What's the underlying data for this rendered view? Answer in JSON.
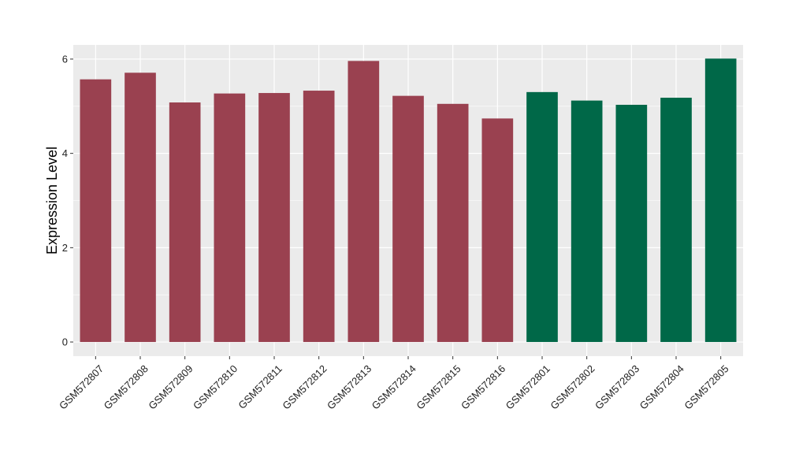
{
  "chart_data": {
    "type": "bar",
    "title": "",
    "xlabel": "",
    "ylabel": "Expression Level",
    "ylim": [
      -0.3,
      6.3
    ],
    "yticks": [
      0,
      2,
      4,
      6
    ],
    "grid": true,
    "legend": "none",
    "categories": [
      "GSM572807",
      "GSM572808",
      "GSM572809",
      "GSM572810",
      "GSM572811",
      "GSM572812",
      "GSM572813",
      "GSM572814",
      "GSM572815",
      "GSM572816",
      "GSM572801",
      "GSM572802",
      "GSM572803",
      "GSM572804",
      "GSM572805"
    ],
    "values": [
      5.57,
      5.71,
      5.08,
      5.27,
      5.28,
      5.33,
      5.96,
      5.22,
      5.05,
      4.74,
      5.3,
      5.12,
      5.03,
      5.18,
      6.01
    ],
    "bar_colors": [
      "#9a4150",
      "#9a4150",
      "#9a4150",
      "#9a4150",
      "#9a4150",
      "#9a4150",
      "#9a4150",
      "#9a4150",
      "#9a4150",
      "#9a4150",
      "#006848",
      "#006848",
      "#006848",
      "#006848",
      "#006848"
    ],
    "panel_background": "#ebebeb",
    "gridline_color": "#ffffff"
  }
}
